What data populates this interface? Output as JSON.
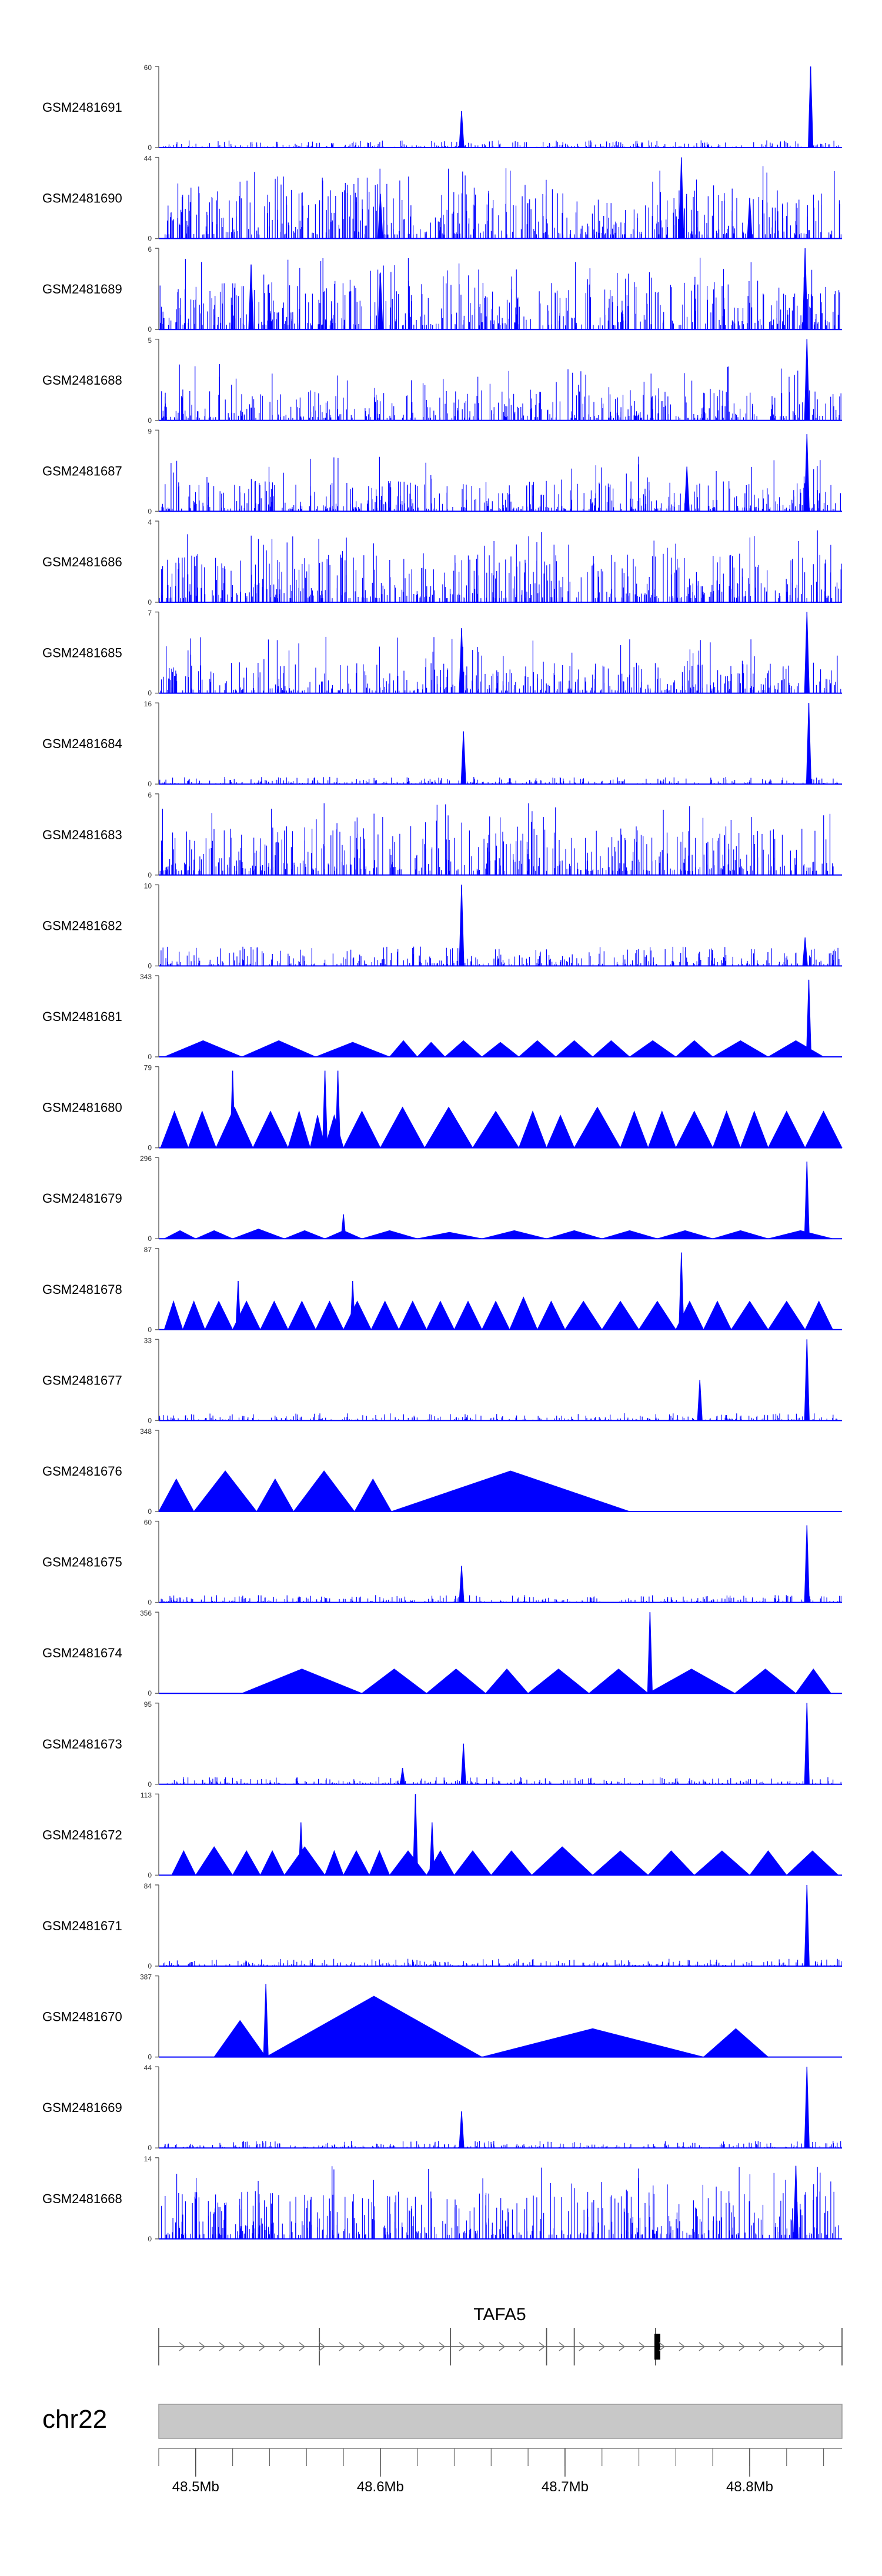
{
  "chart_data": {
    "type": "area",
    "title": "",
    "xlabel": "",
    "ylabel": "",
    "color": "#0000ff",
    "genomic_range_mb": [
      48.48,
      48.85
    ],
    "tracks": [
      {
        "name": "GSM2481691",
        "ymax": "60",
        "ymin": "0",
        "pattern": "sparse",
        "peaks": [
          [
            48.644,
            0.45
          ],
          [
            48.833,
            1.0
          ]
        ]
      },
      {
        "name": "GSM2481690",
        "ymax": "44",
        "ymin": "0",
        "pattern": "dense_tall",
        "peaks": [
          [
            48.6,
            0.55
          ],
          [
            48.763,
            1.0
          ],
          [
            48.8,
            0.5
          ]
        ]
      },
      {
        "name": "GSM2481689",
        "ymax": "6",
        "ymin": "0",
        "pattern": "dense_tall",
        "peaks": [
          [
            48.53,
            0.8
          ],
          [
            48.6,
            0.7
          ],
          [
            48.83,
            1.0
          ]
        ]
      },
      {
        "name": "GSM2481688",
        "ymax": "5",
        "ymin": "0",
        "pattern": "dense_medium",
        "peaks": [
          [
            48.831,
            1.0
          ]
        ]
      },
      {
        "name": "GSM2481687",
        "ymax": "9",
        "ymin": "0",
        "pattern": "dense_medium",
        "peaks": [
          [
            48.766,
            0.55
          ],
          [
            48.831,
            0.95
          ]
        ]
      },
      {
        "name": "GSM2481686",
        "ymax": "4",
        "ymin": "0",
        "pattern": "dense_tall",
        "peaks": []
      },
      {
        "name": "GSM2481685",
        "ymax": "7",
        "ymin": "0",
        "pattern": "dense_medium",
        "peaks": [
          [
            48.644,
            0.8
          ],
          [
            48.831,
            1.0
          ]
        ]
      },
      {
        "name": "GSM2481684",
        "ymax": "16",
        "ymin": "0",
        "pattern": "sparse",
        "peaks": [
          [
            48.645,
            0.65
          ],
          [
            48.832,
            1.0
          ]
        ]
      },
      {
        "name": "GSM2481683",
        "ymax": "6",
        "ymin": "0",
        "pattern": "dense_tall",
        "peaks": []
      },
      {
        "name": "GSM2481682",
        "ymax": "10",
        "ymin": "0",
        "pattern": "sparse_medium",
        "peaks": [
          [
            48.644,
            1.0
          ],
          [
            48.83,
            0.35
          ]
        ]
      },
      {
        "name": "GSM2481681",
        "ymax": "343",
        "ymin": "0",
        "pattern": "triangles",
        "peaks": [
          [
            48.832,
            0.95
          ]
        ],
        "triangles": [
          [
            48.483,
            48.525,
            0.2
          ],
          [
            48.525,
            48.565,
            0.2
          ],
          [
            48.565,
            48.605,
            0.18
          ],
          [
            48.605,
            48.62,
            0.2
          ],
          [
            48.62,
            48.635,
            0.18
          ],
          [
            48.635,
            48.655,
            0.2
          ],
          [
            48.655,
            48.675,
            0.18
          ],
          [
            48.675,
            48.695,
            0.2
          ],
          [
            48.695,
            48.715,
            0.2
          ],
          [
            48.715,
            48.735,
            0.2
          ],
          [
            48.735,
            48.76,
            0.2
          ],
          [
            48.76,
            48.78,
            0.2
          ],
          [
            48.78,
            48.81,
            0.2
          ],
          [
            48.81,
            48.84,
            0.2
          ]
        ]
      },
      {
        "name": "GSM2481680",
        "ymax": "79",
        "ymin": "0",
        "pattern": "triangles",
        "peaks": [
          [
            48.52,
            0.95
          ],
          [
            48.57,
            0.95
          ],
          [
            48.577,
            0.95
          ]
        ],
        "triangles": [
          [
            48.481,
            48.496,
            0.45
          ],
          [
            48.496,
            48.511,
            0.45
          ],
          [
            48.511,
            48.531,
            0.5
          ],
          [
            48.531,
            48.55,
            0.45
          ],
          [
            48.55,
            48.562,
            0.45
          ],
          [
            48.562,
            48.57,
            0.4
          ],
          [
            48.57,
            48.58,
            0.4
          ],
          [
            48.58,
            48.6,
            0.45
          ],
          [
            48.6,
            48.624,
            0.5
          ],
          [
            48.624,
            48.65,
            0.5
          ],
          [
            48.65,
            48.675,
            0.45
          ],
          [
            48.675,
            48.69,
            0.45
          ],
          [
            48.69,
            48.705,
            0.4
          ],
          [
            48.705,
            48.73,
            0.5
          ],
          [
            48.73,
            48.745,
            0.45
          ],
          [
            48.745,
            48.76,
            0.45
          ],
          [
            48.76,
            48.78,
            0.45
          ],
          [
            48.78,
            48.795,
            0.45
          ],
          [
            48.795,
            48.81,
            0.45
          ],
          [
            48.81,
            48.83,
            0.45
          ],
          [
            48.83,
            48.85,
            0.45
          ]
        ]
      },
      {
        "name": "GSM2481679",
        "ymax": "296",
        "ymin": "0",
        "pattern": "triangles",
        "peaks": [
          [
            48.831,
            0.95
          ],
          [
            48.58,
            0.3
          ]
        ],
        "triangles": [
          [
            48.483,
            48.5,
            0.1
          ],
          [
            48.5,
            48.52,
            0.1
          ],
          [
            48.52,
            48.548,
            0.12
          ],
          [
            48.548,
            48.57,
            0.1
          ],
          [
            48.57,
            48.59,
            0.1
          ],
          [
            48.59,
            48.62,
            0.1
          ],
          [
            48.62,
            48.655,
            0.08
          ],
          [
            48.655,
            48.69,
            0.1
          ],
          [
            48.69,
            48.72,
            0.1
          ],
          [
            48.72,
            48.75,
            0.1
          ],
          [
            48.75,
            48.78,
            0.1
          ],
          [
            48.78,
            48.81,
            0.1
          ],
          [
            48.81,
            48.845,
            0.1
          ]
        ]
      },
      {
        "name": "GSM2481678",
        "ymax": "87",
        "ymin": "0",
        "pattern": "triangles",
        "peaks": [
          [
            48.523,
            0.6
          ],
          [
            48.763,
            0.95
          ],
          [
            48.585,
            0.6
          ]
        ],
        "triangles": [
          [
            48.483,
            48.493,
            0.35
          ],
          [
            48.493,
            48.505,
            0.35
          ],
          [
            48.505,
            48.52,
            0.35
          ],
          [
            48.52,
            48.535,
            0.35
          ],
          [
            48.535,
            48.55,
            0.35
          ],
          [
            48.55,
            48.565,
            0.35
          ],
          [
            48.565,
            48.58,
            0.35
          ],
          [
            48.58,
            48.595,
            0.35
          ],
          [
            48.595,
            48.61,
            0.35
          ],
          [
            48.61,
            48.625,
            0.35
          ],
          [
            48.625,
            48.64,
            0.35
          ],
          [
            48.64,
            48.655,
            0.35
          ],
          [
            48.655,
            48.67,
            0.35
          ],
          [
            48.67,
            48.685,
            0.4
          ],
          [
            48.685,
            48.7,
            0.35
          ],
          [
            48.7,
            48.72,
            0.35
          ],
          [
            48.72,
            48.74,
            0.35
          ],
          [
            48.74,
            48.76,
            0.35
          ],
          [
            48.76,
            48.775,
            0.35
          ],
          [
            48.775,
            48.79,
            0.35
          ],
          [
            48.79,
            48.81,
            0.35
          ],
          [
            48.81,
            48.83,
            0.35
          ],
          [
            48.83,
            48.845,
            0.35
          ]
        ]
      },
      {
        "name": "GSM2481677",
        "ymax": "33",
        "ymin": "0",
        "pattern": "sparse",
        "peaks": [
          [
            48.773,
            0.5
          ],
          [
            48.831,
            1.0
          ]
        ]
      },
      {
        "name": "GSM2481676",
        "ymax": "348",
        "ymin": "0",
        "pattern": "triangles",
        "peaks": [],
        "triangles": [
          [
            48.48,
            48.499,
            0.4
          ],
          [
            48.499,
            48.533,
            0.5
          ],
          [
            48.533,
            48.553,
            0.4
          ],
          [
            48.553,
            48.586,
            0.5
          ],
          [
            48.586,
            48.606,
            0.4
          ],
          [
            48.606,
            48.735,
            0.5
          ]
        ]
      },
      {
        "name": "GSM2481675",
        "ymax": "60",
        "ymin": "0",
        "pattern": "sparse",
        "peaks": [
          [
            48.644,
            0.45
          ],
          [
            48.831,
            0.95
          ]
        ]
      },
      {
        "name": "GSM2481674",
        "ymax": "356",
        "ymin": "0",
        "pattern": "triangles",
        "peaks": [
          [
            48.746,
            1.0
          ]
        ],
        "triangles": [
          [
            48.525,
            48.59,
            0.3
          ],
          [
            48.59,
            48.625,
            0.3
          ],
          [
            48.625,
            48.657,
            0.3
          ],
          [
            48.657,
            48.68,
            0.3
          ],
          [
            48.68,
            48.713,
            0.3
          ],
          [
            48.713,
            48.745,
            0.3
          ],
          [
            48.745,
            48.792,
            0.3
          ],
          [
            48.792,
            48.825,
            0.3
          ],
          [
            48.825,
            48.844,
            0.3
          ]
        ]
      },
      {
        "name": "GSM2481673",
        "ymax": "95",
        "ymin": "0",
        "pattern": "sparse",
        "peaks": [
          [
            48.645,
            0.5
          ],
          [
            48.831,
            1.0
          ],
          [
            48.612,
            0.2
          ]
        ]
      },
      {
        "name": "GSM2481672",
        "ymax": "113",
        "ymin": "0",
        "pattern": "triangles",
        "peaks": [
          [
            48.557,
            0.65
          ],
          [
            48.619,
            1.0
          ],
          [
            48.628,
            0.65
          ]
        ],
        "triangles": [
          [
            48.487,
            48.5,
            0.3
          ],
          [
            48.5,
            48.52,
            0.35
          ],
          [
            48.52,
            48.535,
            0.3
          ],
          [
            48.535,
            48.548,
            0.3
          ],
          [
            48.548,
            48.57,
            0.35
          ],
          [
            48.57,
            48.58,
            0.3
          ],
          [
            48.58,
            48.594,
            0.3
          ],
          [
            48.594,
            48.605,
            0.3
          ],
          [
            48.605,
            48.625,
            0.3
          ],
          [
            48.625,
            48.64,
            0.3
          ],
          [
            48.64,
            48.66,
            0.3
          ],
          [
            48.66,
            48.682,
            0.3
          ],
          [
            48.682,
            48.715,
            0.35
          ],
          [
            48.715,
            48.745,
            0.3
          ],
          [
            48.745,
            48.77,
            0.3
          ],
          [
            48.77,
            48.8,
            0.3
          ],
          [
            48.8,
            48.82,
            0.3
          ],
          [
            48.82,
            48.848,
            0.3
          ]
        ]
      },
      {
        "name": "GSM2481671",
        "ymax": "84",
        "ymin": "0",
        "pattern": "sparse",
        "peaks": [
          [
            48.831,
            1.0
          ]
        ]
      },
      {
        "name": "GSM2481670",
        "ymax": "387",
        "ymin": "0",
        "pattern": "triangles",
        "peaks": [
          [
            48.538,
            0.9
          ]
        ],
        "triangles": [
          [
            48.51,
            48.538,
            0.45
          ],
          [
            48.538,
            48.655,
            0.75
          ],
          [
            48.655,
            48.775,
            0.35
          ],
          [
            48.775,
            48.81,
            0.35
          ]
        ]
      },
      {
        "name": "GSM2481669",
        "ymax": "44",
        "ymin": "0",
        "pattern": "sparse",
        "peaks": [
          [
            48.644,
            0.45
          ],
          [
            48.831,
            1.0
          ]
        ]
      },
      {
        "name": "GSM2481668",
        "ymax": "14",
        "ymin": "0",
        "pattern": "dense_tall",
        "peaks": [
          [
            48.825,
            0.9
          ]
        ]
      }
    ],
    "gene": {
      "name": "TAFA5",
      "strand": "+",
      "start_mb": 48.48,
      "end_mb": 48.85,
      "exons_mb": [
        48.48,
        48.567,
        48.638,
        48.69,
        48.705,
        48.749,
        48.85
      ],
      "thick_exon_mb": 48.75
    },
    "chromosome": {
      "name": "chr22",
      "tick_labels": [
        "48.5Mb",
        "48.6Mb",
        "48.7Mb",
        "48.8Mb"
      ],
      "tick_values_mb": [
        48.5,
        48.6,
        48.7,
        48.8
      ],
      "minor_step_mb": 0.02
    }
  }
}
